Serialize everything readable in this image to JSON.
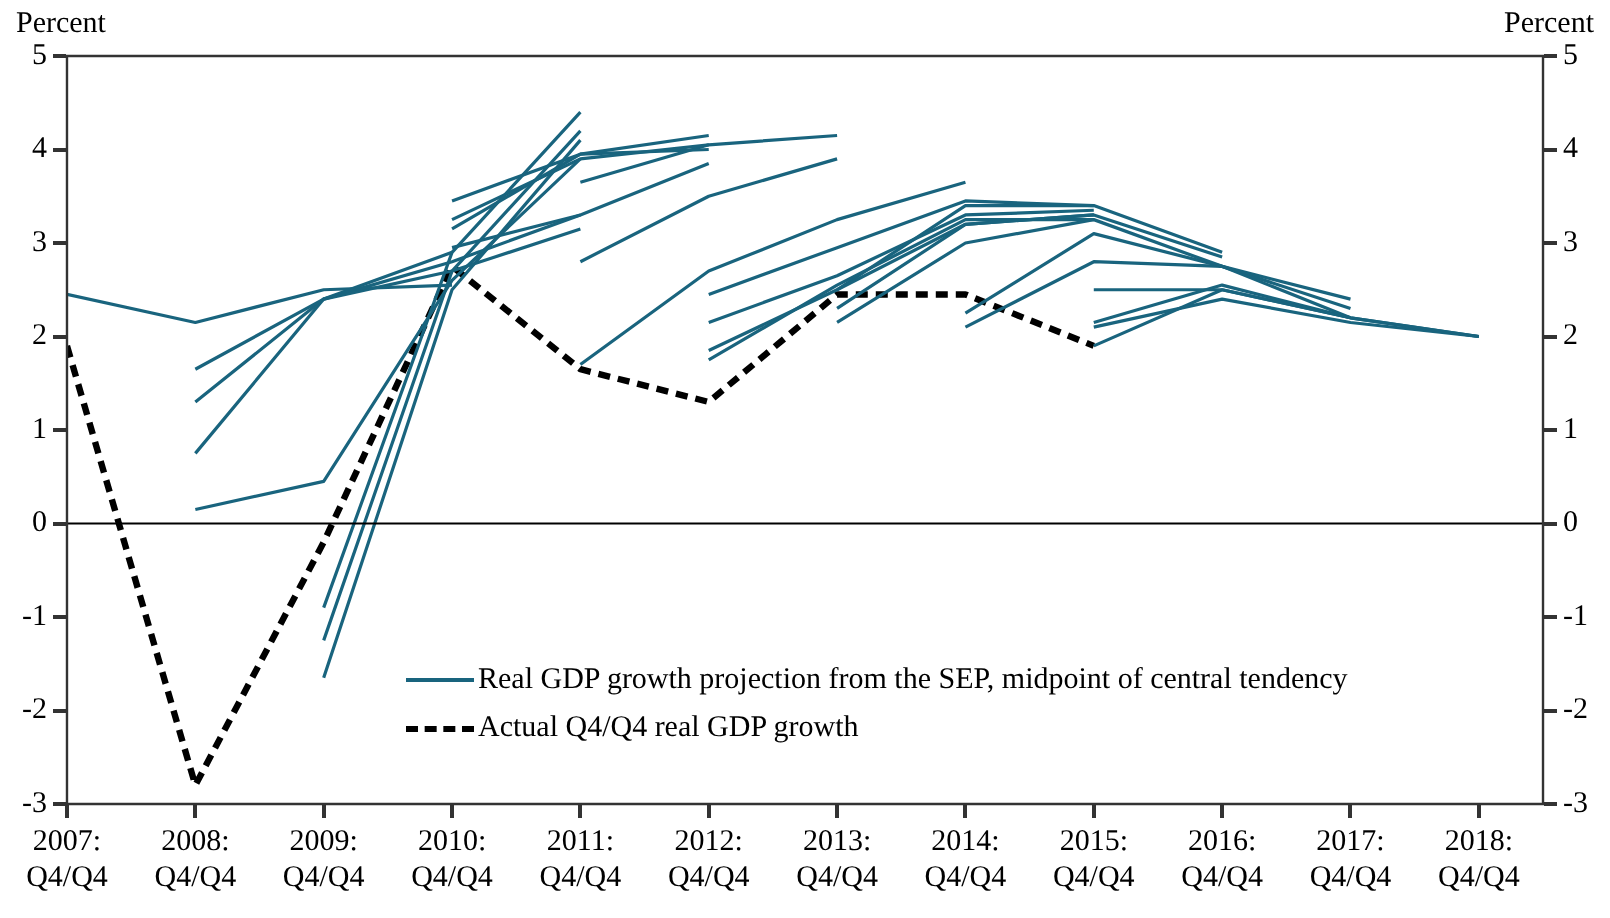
{
  "chart_data": {
    "type": "line",
    "ylabel": "Percent",
    "y2label": "Percent",
    "categories": [
      "2007: Q4/Q4",
      "2008: Q4/Q4",
      "2009: Q4/Q4",
      "2010: Q4/Q4",
      "2011: Q4/Q4",
      "2012: Q4/Q4",
      "2013: Q4/Q4",
      "2014: Q4/Q4",
      "2015: Q4/Q4",
      "2016: Q4/Q4",
      "2017: Q4/Q4",
      "2018: Q4/Q4"
    ],
    "ylim": [
      -3,
      5
    ],
    "yticks": [
      -3,
      -2,
      -1,
      0,
      1,
      2,
      3,
      4,
      5
    ],
    "y2lim": [
      -3,
      5
    ],
    "y2ticks": [
      -3,
      -2,
      -1,
      0,
      1,
      2,
      3,
      4,
      5
    ],
    "grid": false,
    "legend": "bottom right",
    "marker": "none",
    "ref_lines": [
      {
        "axis": "y",
        "value": 0,
        "color": "#000000"
      }
    ],
    "series": [
      {
        "name": "Real GDP growth projection from the SEP, midpoint of central tendency",
        "color": "#19647e",
        "line_style": "solid",
        "values": [
          2.45,
          2.15,
          2.5,
          2.55,
          null,
          null,
          null,
          null,
          null,
          null,
          null,
          null
        ]
      },
      {
        "color": "#19647e",
        "line_style": "solid",
        "values": [
          null,
          1.65,
          2.4,
          2.7,
          3.15,
          null,
          null,
          null,
          null,
          null,
          null,
          null
        ]
      },
      {
        "color": "#19647e",
        "line_style": "solid",
        "values": [
          null,
          1.3,
          2.4,
          2.8,
          3.3,
          null,
          null,
          null,
          null,
          null,
          null,
          null
        ]
      },
      {
        "color": "#19647e",
        "line_style": "solid",
        "values": [
          null,
          0.75,
          2.4,
          2.9,
          null,
          null,
          null,
          null,
          null,
          null,
          null,
          null
        ]
      },
      {
        "color": "#19647e",
        "line_style": "solid",
        "values": [
          null,
          0.15,
          0.45,
          2.6,
          3.9,
          null,
          null,
          null,
          null,
          null,
          null,
          null
        ]
      },
      {
        "color": "#19647e",
        "line_style": "solid",
        "values": [
          null,
          null,
          -0.9,
          2.9,
          4.4,
          null,
          null,
          null,
          null,
          null,
          null,
          null
        ]
      },
      {
        "color": "#19647e",
        "line_style": "solid",
        "values": [
          null,
          null,
          -1.25,
          2.7,
          4.2,
          null,
          null,
          null,
          null,
          null,
          null,
          null
        ]
      },
      {
        "color": "#19647e",
        "line_style": "solid",
        "values": [
          null,
          null,
          -1.65,
          2.5,
          4.1,
          null,
          null,
          null,
          null,
          null,
          null,
          null
        ]
      },
      {
        "color": "#19647e",
        "line_style": "solid",
        "values": [
          null,
          null,
          null,
          3.45,
          3.95,
          4.15,
          null,
          null,
          null,
          null,
          null,
          null
        ]
      },
      {
        "color": "#19647e",
        "line_style": "solid",
        "values": [
          null,
          null,
          null,
          3.25,
          3.9,
          4.05,
          null,
          null,
          null,
          null,
          null,
          null
        ]
      },
      {
        "color": "#19647e",
        "line_style": "solid",
        "values": [
          null,
          null,
          null,
          3.15,
          3.95,
          4.0,
          null,
          null,
          null,
          null,
          null,
          null
        ]
      },
      {
        "color": "#19647e",
        "line_style": "solid",
        "values": [
          null,
          null,
          null,
          2.95,
          3.3,
          3.85,
          null,
          null,
          null,
          null,
          null,
          null
        ]
      },
      {
        "color": "#19647e",
        "line_style": "solid",
        "values": [
          null,
          null,
          null,
          null,
          3.65,
          4.05,
          4.15,
          null,
          null,
          null,
          null,
          null
        ]
      },
      {
        "color": "#19647e",
        "line_style": "solid",
        "values": [
          null,
          null,
          null,
          null,
          2.8,
          3.5,
          3.9,
          null,
          null,
          null,
          null,
          null
        ]
      },
      {
        "color": "#19647e",
        "line_style": "solid",
        "values": [
          null,
          null,
          null,
          null,
          1.7,
          2.7,
          3.25,
          3.65,
          null,
          null,
          null,
          null
        ]
      },
      {
        "color": "#19647e",
        "line_style": "solid",
        "values": [
          null,
          null,
          null,
          null,
          null,
          2.45,
          2.95,
          3.45,
          3.4,
          null,
          null,
          null
        ]
      },
      {
        "color": "#19647e",
        "line_style": "solid",
        "values": [
          null,
          null,
          null,
          null,
          null,
          2.15,
          2.65,
          3.3,
          3.35,
          null,
          null,
          null
        ]
      },
      {
        "color": "#19647e",
        "line_style": "solid",
        "values": [
          null,
          null,
          null,
          null,
          null,
          1.85,
          2.5,
          3.2,
          3.3,
          null,
          null,
          null
        ]
      },
      {
        "color": "#19647e",
        "line_style": "solid",
        "values": [
          null,
          null,
          null,
          null,
          null,
          1.75,
          2.55,
          3.25,
          3.25,
          null,
          null,
          null
        ]
      },
      {
        "color": "#19647e",
        "line_style": "solid",
        "values": [
          null,
          null,
          null,
          null,
          null,
          null,
          2.5,
          3.4,
          3.4,
          2.9,
          null,
          null
        ]
      },
      {
        "color": "#19647e",
        "line_style": "solid",
        "values": [
          null,
          null,
          null,
          null,
          null,
          null,
          2.3,
          3.2,
          3.3,
          2.85,
          null,
          null
        ]
      },
      {
        "color": "#19647e",
        "line_style": "solid",
        "values": [
          null,
          null,
          null,
          null,
          null,
          null,
          2.15,
          3.0,
          3.25,
          2.75,
          2.4,
          null
        ]
      },
      {
        "color": "#19647e",
        "line_style": "solid",
        "values": [
          null,
          null,
          null,
          null,
          null,
          null,
          null,
          2.25,
          3.1,
          2.75,
          2.3,
          null
        ]
      },
      {
        "color": "#19647e",
        "line_style": "solid",
        "values": [
          null,
          null,
          null,
          null,
          null,
          null,
          null,
          2.1,
          2.8,
          2.75,
          2.2,
          null
        ]
      },
      {
        "color": "#19647e",
        "line_style": "solid",
        "values": [
          null,
          null,
          null,
          null,
          null,
          null,
          null,
          null,
          2.5,
          2.5,
          2.2,
          null
        ]
      },
      {
        "color": "#19647e",
        "line_style": "solid",
        "values": [
          null,
          null,
          null,
          null,
          null,
          null,
          null,
          null,
          2.15,
          2.55,
          2.2,
          2.0
        ]
      },
      {
        "color": "#19647e",
        "line_style": "solid",
        "values": [
          null,
          null,
          null,
          null,
          null,
          null,
          null,
          null,
          2.1,
          2.4,
          2.15,
          2.0
        ]
      },
      {
        "color": "#19647e",
        "line_style": "solid",
        "values": [
          null,
          null,
          null,
          null,
          null,
          null,
          null,
          null,
          1.9,
          2.5,
          2.2,
          2.0
        ]
      },
      {
        "name": "Actual Q4/Q4 real GDP growth",
        "color": "#000000",
        "line_style": "dashed",
        "values": [
          1.9,
          -2.8,
          -0.2,
          2.75,
          1.65,
          1.3,
          2.45,
          2.45,
          1.9,
          null,
          null,
          null
        ]
      }
    ]
  }
}
